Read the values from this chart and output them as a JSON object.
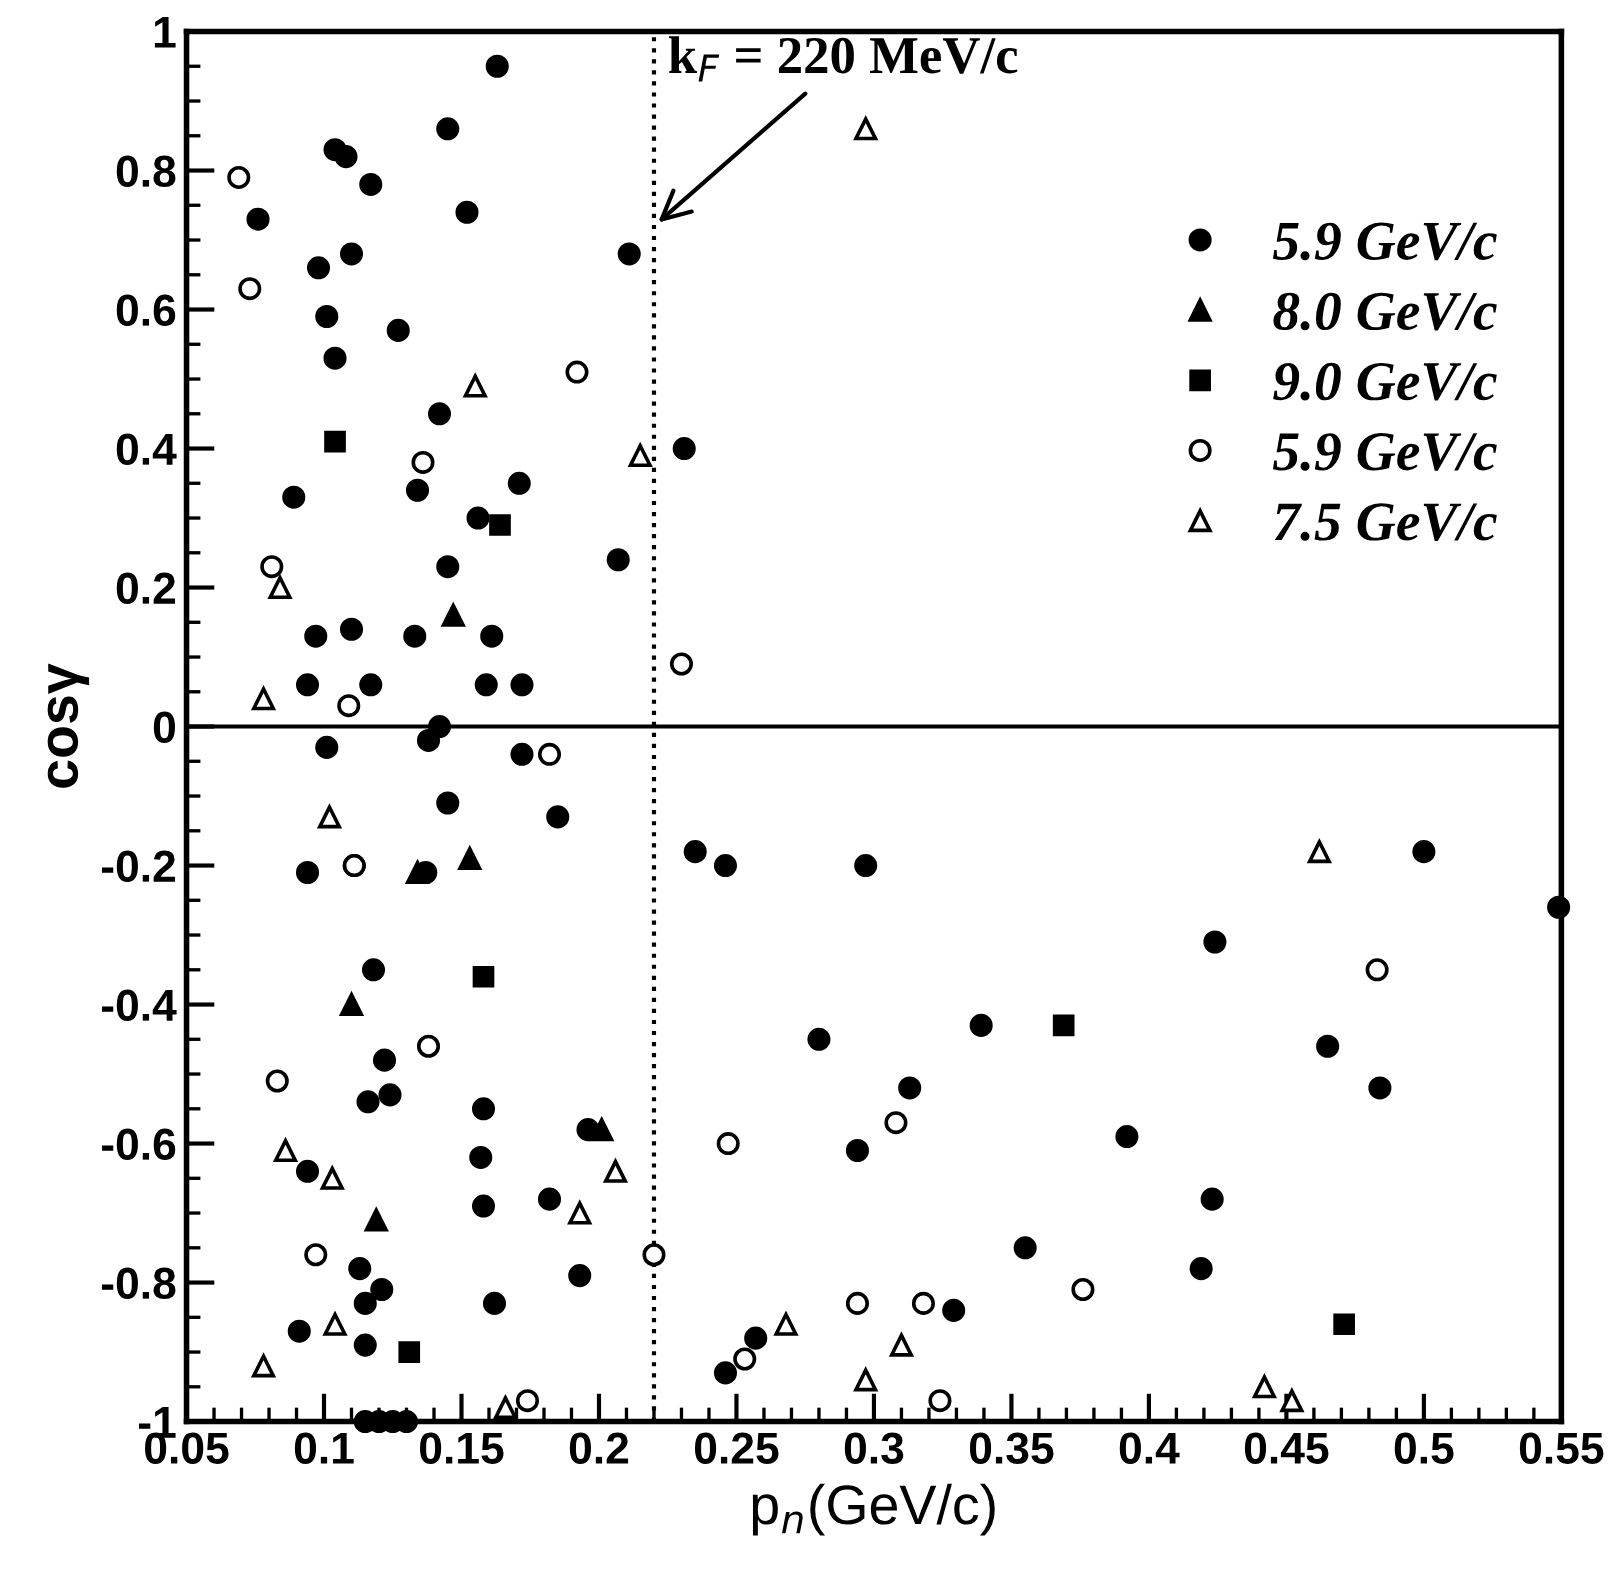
{
  "chart_data": {
    "type": "scatter",
    "xlabel": "p$_{n}$(GeV/c)",
    "ylabel": "cosγ",
    "xlim": [
      0.05,
      0.55
    ],
    "xticks": [
      0.05,
      0.1,
      0.15,
      0.2,
      0.25,
      0.3,
      0.35,
      0.4,
      0.45,
      0.5,
      0.55
    ],
    "ylim": [
      -1,
      1
    ],
    "yticks": [
      -1,
      -0.8,
      -0.6,
      -0.4,
      -0.2,
      0,
      0.2,
      0.4,
      0.6,
      0.8,
      1
    ],
    "grid": false,
    "legend": "top right",
    "ref_lines": [
      {
        "axis": "x",
        "value": 0.22,
        "line_style": "dotted",
        "color": "#000000"
      },
      {
        "axis": "y",
        "value": 0,
        "line_style": "solid",
        "color": "#000000"
      }
    ],
    "annotations": [
      {
        "text": "k$_{F}$ = 220 MeV/c",
        "x": 0.22,
        "y": 0.72
      }
    ],
    "series": [
      {
        "name": "5.9 GeV/c",
        "color": "#000000",
        "marker": "circle",
        "x": [
          0.163,
          0.145,
          0.104,
          0.108,
          0.117,
          0.152,
          0.076,
          0.211,
          0.11,
          0.098,
          0.101,
          0.127,
          0.104,
          0.142,
          0.231,
          0.089,
          0.134,
          0.171,
          0.156,
          0.145,
          0.207,
          0.097,
          0.11,
          0.133,
          0.161,
          0.094,
          0.117,
          0.159,
          0.172,
          0.101,
          0.138,
          0.142,
          0.172,
          0.145,
          0.185,
          0.094,
          0.111,
          0.137,
          0.118,
          0.122,
          0.116,
          0.124,
          0.158,
          0.157,
          0.094,
          0.158,
          0.182,
          0.196,
          0.113,
          0.121,
          0.115,
          0.193,
          0.162,
          0.091,
          0.115,
          0.115,
          0.12,
          0.125,
          0.13,
          0.235,
          0.246,
          0.297,
          0.5,
          0.549,
          0.424,
          0.28,
          0.339,
          0.465,
          0.484,
          0.313,
          0.294,
          0.392,
          0.423,
          0.355,
          0.419,
          0.329,
          0.257,
          0.246
        ],
        "values": [
          0.95,
          0.86,
          0.83,
          0.82,
          0.78,
          0.74,
          0.73,
          0.68,
          0.68,
          0.66,
          0.59,
          0.57,
          0.53,
          0.45,
          0.4,
          0.33,
          0.34,
          0.35,
          0.3,
          0.23,
          0.24,
          0.13,
          0.14,
          0.13,
          0.13,
          0.06,
          0.06,
          0.06,
          0.06,
          -0.03,
          -0.02,
          0.0,
          -0.04,
          -0.11,
          -0.13,
          -0.21,
          -0.2,
          -0.21,
          -0.35,
          -0.48,
          -0.54,
          -0.53,
          -0.55,
          -0.62,
          -0.64,
          -0.69,
          -0.68,
          -0.58,
          -0.78,
          -0.81,
          -0.83,
          -0.79,
          -0.83,
          -0.87,
          -0.89,
          -1.0,
          -1.0,
          -1.0,
          -1.0,
          -0.18,
          -0.2,
          -0.2,
          -0.18,
          -0.26,
          -0.31,
          -0.45,
          -0.43,
          -0.46,
          -0.52,
          -0.52,
          -0.61,
          -0.59,
          -0.68,
          -0.75,
          -0.78,
          -0.84,
          -0.88,
          -0.93
        ]
      },
      {
        "name": "8.0 GeV/c",
        "color": "#000000",
        "marker": "triangle",
        "x": [
          0.147,
          0.153,
          0.134,
          0.11,
          0.119,
          0.201
        ],
        "values": [
          0.16,
          -0.19,
          -0.21,
          -0.4,
          -0.71,
          -0.58
        ]
      },
      {
        "name": "9.0 GeV/c",
        "color": "#000000",
        "marker": "square",
        "x": [
          0.104,
          0.164,
          0.158,
          0.131,
          0.369,
          0.471
        ],
        "values": [
          0.41,
          0.29,
          -0.36,
          -0.9,
          -0.43,
          -0.86
        ]
      },
      {
        "name": "5.9 GeV/c",
        "color": "#ffffff",
        "marker": "circle",
        "x": [
          0.069,
          0.073,
          0.192,
          0.136,
          0.081,
          0.109,
          0.23,
          0.182,
          0.111,
          0.138,
          0.083,
          0.097,
          0.22,
          0.174,
          0.247,
          0.308,
          0.483,
          0.376,
          0.294,
          0.318,
          0.253,
          0.324
        ],
        "values": [
          0.79,
          0.63,
          0.51,
          0.38,
          0.23,
          0.03,
          0.09,
          -0.04,
          -0.2,
          -0.46,
          -0.51,
          -0.76,
          -0.76,
          -0.97,
          -0.6,
          -0.57,
          -0.35,
          -0.81,
          -0.83,
          -0.83,
          -0.91,
          -0.97
        ]
      },
      {
        "name": "7.5 GeV/c",
        "color": "#ffffff",
        "marker": "triangle",
        "x": [
          0.297,
          0.155,
          0.215,
          0.084,
          0.078,
          0.102,
          0.086,
          0.103,
          0.206,
          0.193,
          0.104,
          0.078,
          0.166,
          0.462,
          0.268,
          0.31,
          0.297,
          0.442,
          0.452
        ],
        "values": [
          0.86,
          0.49,
          0.39,
          0.2,
          0.04,
          -0.13,
          -0.61,
          -0.65,
          -0.64,
          -0.7,
          -0.86,
          -0.92,
          -0.98,
          -0.18,
          -0.86,
          -0.89,
          -0.94,
          -0.95,
          -0.97
        ]
      }
    ]
  }
}
